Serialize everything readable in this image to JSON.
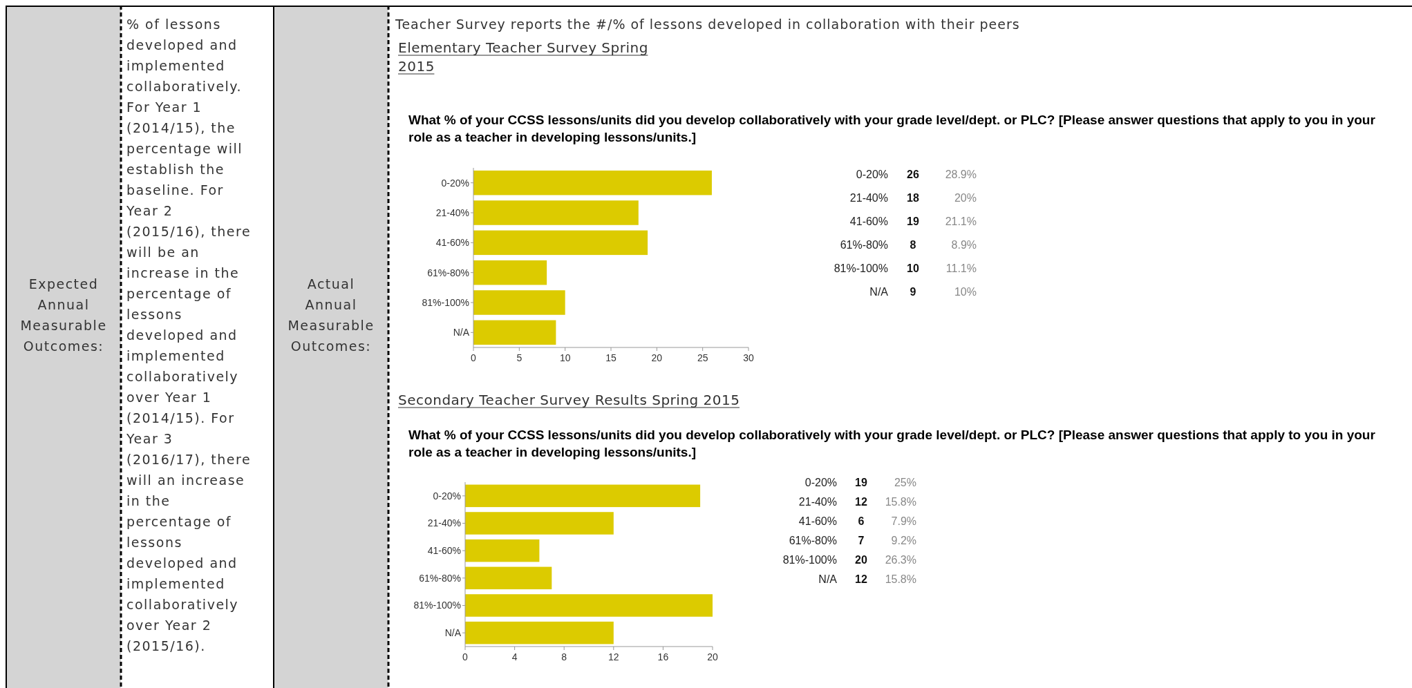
{
  "chart_data": [
    {
      "type": "bar",
      "orientation": "horizontal",
      "title": "What % of your CCSS lessons/units did you develop collaboratively with your grade level/dept. or PLC?  [Please answer questions that apply to you in your role as a teacher in developing lessons/units.]",
      "subtitle": "Elementary Teacher Survey Spring 2015",
      "categories": [
        "0-20%",
        "21-40%",
        "41-60%",
        "61%-80%",
        "81%-100%",
        "N/A"
      ],
      "values": [
        26,
        18,
        19,
        8,
        10,
        9
      ],
      "color": "#dccb00",
      "xlim": [
        0,
        30
      ],
      "xticks": [
        0,
        5,
        10,
        15,
        20,
        25,
        30
      ],
      "annotations": [
        "Expected Annual Measurable Outcomes:",
        "% of lessons developed and implemented collaboratively. For Year 1 (2014/15), the percentage will establish the baseline. For Year 2 (2015/16), there will be an increase in the percentage of lessons developed and implemented collaboratively over Year 1 (2014/15). For Year 3 (2016/17), there will an increase in the percentage of lessons developed and implemented collaboratively over Year 2 (2015/16).",
        "Actual Annual Measurable Outcomes:",
        "Teacher Survey reports the #/% of lessons developed in collaboration with their peers",
        "26",
        "18",
        "19",
        "8",
        "10",
        "9",
        "28.9%",
        "20%",
        "21.1%",
        "8.9%",
        "11.1%",
        "10%"
      ]
    },
    {
      "type": "bar",
      "orientation": "horizontal",
      "title": "What % of your CCSS lessons/units did you develop collaboratively with your grade level/dept. or PLC?  [Please answer questions that apply to you in your role as a teacher in developing lessons/units.]",
      "subtitle": "Secondary Teacher Survey Results Spring 2015",
      "categories": [
        "0-20%",
        "21-40%",
        "41-60%",
        "61%-80%",
        "81%-100%",
        "N/A"
      ],
      "values": [
        19,
        12,
        6,
        7,
        20,
        12
      ],
      "color": "#dccb00",
      "xlim": [
        0,
        20
      ],
      "xticks": [
        0,
        4,
        8,
        12,
        16,
        20
      ],
      "annotations": [
        "19",
        "12",
        "6",
        "7",
        "20",
        "12",
        "25%",
        "15.8%",
        "7.9%",
        "9.2%",
        "26.3%",
        "15.8%"
      ]
    }
  ]
}
